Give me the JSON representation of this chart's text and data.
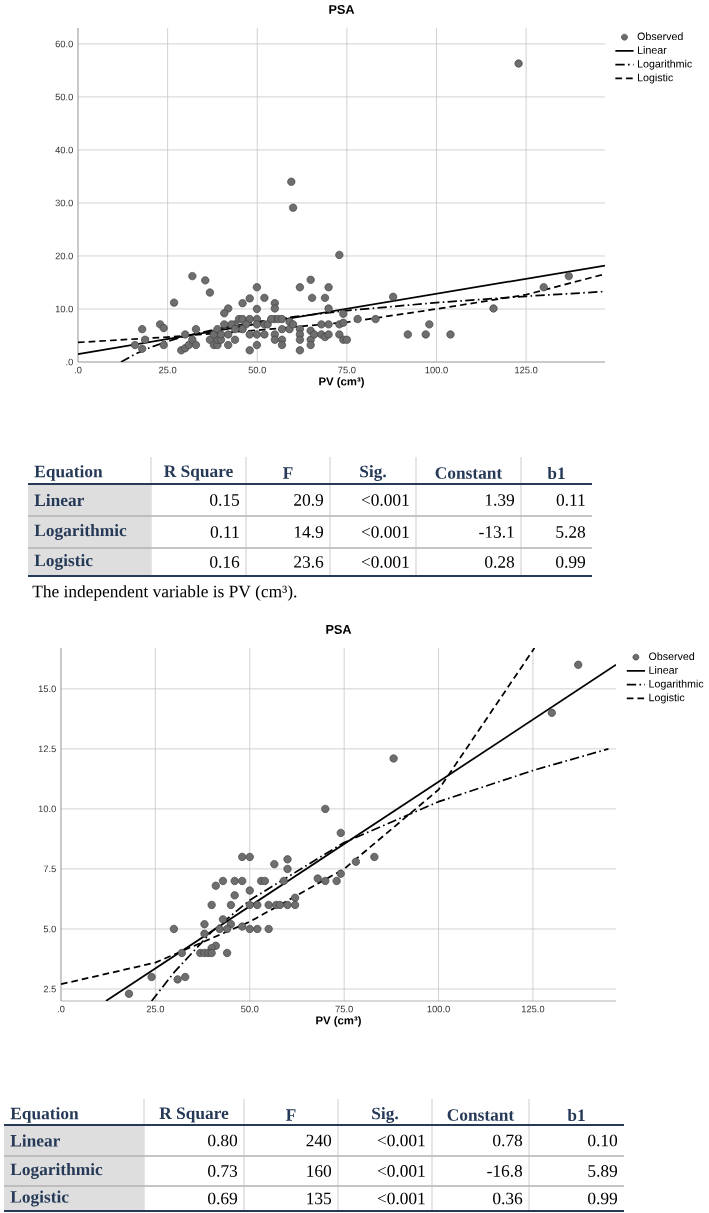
{
  "chart_data": [
    {
      "type": "scatter",
      "title": "PSA",
      "xlabel": "PV (cm³)",
      "marker": "circle",
      "grid": true,
      "legend": "top right",
      "xlim": [
        0,
        147
      ],
      "ylim": [
        0,
        63
      ],
      "xticks": [
        {
          "value": 0,
          "label": ".0"
        },
        {
          "value": 25,
          "label": "25.0"
        },
        {
          "value": 50,
          "label": "50.0"
        },
        {
          "value": 75,
          "label": "75.0"
        },
        {
          "value": 100,
          "label": "100.0"
        },
        {
          "value": 125,
          "label": "125.0"
        }
      ],
      "yticks": [
        {
          "value": 0,
          "label": ".0"
        },
        {
          "value": 10,
          "label": "10.0"
        },
        {
          "value": 20,
          "label": "20.0"
        },
        {
          "value": 30,
          "label": "30.0"
        },
        {
          "value": 40,
          "label": "40.0"
        },
        {
          "value": 50,
          "label": "50.0"
        },
        {
          "value": 60,
          "label": "60.0"
        }
      ],
      "series": [
        {
          "name": "Observed",
          "type": "scatter",
          "color": "#6e6e6e",
          "x": [
            122.9,
            59.5,
            60,
            72.9,
            31.9,
            35.5,
            36.8,
            26.8,
            64.9,
            61.9,
            69.9,
            49.9,
            47.9,
            52,
            45.9,
            54.9,
            54.9,
            49.9,
            41.9,
            40.8,
            65.3,
            68.9,
            69.9,
            74,
            87.9,
            115.9,
            129.9,
            136.9,
            83,
            78,
            92,
            97,
            98,
            103.9,
            17.9,
            17.9,
            15.9,
            18.7,
            22.9,
            23.9,
            23.9,
            29.9,
            28.8,
            29.9,
            30.9,
            31.9,
            32.9,
            32.9,
            36.8,
            37.9,
            38.9,
            38.9,
            39.9,
            41.9,
            41.9,
            43.8,
            44.9,
            45.9,
            47.9,
            49.9,
            43.8,
            42.8,
            40.8,
            47.9,
            49.9,
            47.9,
            49.9,
            52,
            52,
            54.9,
            54.9,
            56.9,
            56.9,
            56.9,
            59,
            61.9,
            61.9,
            61.9,
            61.9,
            64.9,
            64.9,
            64.9,
            65.9,
            67.9,
            67.9,
            68.9,
            69.9,
            69.9,
            72.9,
            72.9,
            74,
            75,
            74,
            54.9,
            52.9,
            53.9,
            55.9,
            46.9,
            45.9,
            43.8,
            37.9,
            38.9,
            39.9,
            59,
            56.9,
            60,
            49.9
          ],
          "values": [
            56.3,
            34.0,
            29.1,
            20.2,
            16.2,
            15.4,
            13.1,
            11.2,
            15.5,
            14.1,
            14.1,
            14.1,
            12.0,
            12.1,
            11.1,
            11.1,
            10.1,
            10.0,
            10.1,
            9.2,
            12.1,
            12.1,
            10.1,
            9.1,
            12.3,
            10.1,
            14.1,
            16.2,
            8.1,
            8.1,
            5.2,
            5.2,
            7.1,
            5.2,
            6.2,
            2.5,
            3.2,
            4.2,
            7.1,
            6.4,
            3.2,
            5.2,
            2.2,
            2.6,
            3.2,
            4.2,
            3.2,
            6.2,
            4.2,
            3.2,
            3.2,
            4.2,
            4.2,
            3.2,
            5.2,
            4.2,
            8.1,
            8.1,
            8.1,
            8.1,
            7.1,
            7.1,
            7.1,
            5.2,
            5.2,
            2.2,
            3.2,
            5.2,
            7.1,
            5.2,
            4.2,
            4.2,
            3.2,
            6.2,
            6.2,
            6.2,
            5.2,
            4.2,
            2.2,
            4.2,
            3.2,
            5.9,
            5.2,
            7.1,
            5.2,
            4.7,
            7.1,
            5.2,
            7.1,
            5.2,
            4.2,
            4.2,
            7.4,
            8.1,
            7.1,
            8.1,
            8.1,
            7.1,
            6.2,
            6.2,
            5.2,
            6.2,
            5.2,
            7.6,
            8.1,
            7.1,
            7.1
          ]
        },
        {
          "name": "Linear",
          "type": "line",
          "color": "#000000",
          "marker": "none",
          "line_style": "solid",
          "x": [
            0,
            147
          ],
          "values": [
            1.5,
            18.2
          ]
        },
        {
          "name": "Logarithmic",
          "type": "line",
          "color": "#000000",
          "marker": "none",
          "line_style": "dashdot",
          "x": [
            12,
            16,
            20,
            25,
            30,
            40,
            50,
            60,
            75,
            100,
            125,
            147
          ],
          "values": [
            0.0,
            1.5,
            2.7,
            3.9,
            4.9,
            6.4,
            7.6,
            8.5,
            9.7,
            11.2,
            12.4,
            13.3
          ]
        },
        {
          "name": "Logistic",
          "type": "line",
          "color": "#000000",
          "marker": "none",
          "line_style": "dashed",
          "x": [
            0,
            25,
            50,
            75,
            100,
            125,
            147
          ],
          "values": [
            3.7,
            4.7,
            6.0,
            7.5,
            10.0,
            12.7,
            16.6
          ]
        }
      ]
    },
    {
      "type": "other",
      "annotations": [
        "Equation",
        "R Square",
        "F",
        "Sig.",
        "Constant",
        "b1",
        "Linear",
        "0.15",
        "20.9",
        "<0.001",
        "1.39",
        "0.11",
        "Logarithmic",
        "0.11",
        "14.9",
        "<0.001",
        "-13.1",
        "5.28",
        "Logistic",
        "0.16",
        "23.6",
        "<0.001",
        "0.28",
        "0.99",
        "The independent variable is PV (cm³)."
      ]
    },
    {
      "type": "scatter",
      "title": "PSA",
      "xlabel": "PV (cm³)",
      "marker": "circle",
      "grid": true,
      "legend": "top right",
      "xlim": [
        0,
        147
      ],
      "ylim": [
        2,
        16.7
      ],
      "xticks": [
        {
          "value": 0,
          "label": ".0"
        },
        {
          "value": 25,
          "label": "25.0"
        },
        {
          "value": 50,
          "label": "50.0"
        },
        {
          "value": 75,
          "label": "75.0"
        },
        {
          "value": 100,
          "label": "100.0"
        },
        {
          "value": 125,
          "label": "125.0"
        }
      ],
      "yticks": [
        2.5,
        {
          "value": 5,
          "label": "5.0"
        },
        7.5,
        {
          "value": 10,
          "label": "10.0"
        },
        12.5,
        {
          "value": 15,
          "label": "15.0"
        }
      ],
      "series": [
        {
          "name": "Observed",
          "type": "scatter",
          "color": "#6e6e6e",
          "x": [
            137,
            130,
            88.1,
            70,
            74.1,
            48,
            50,
            56.5,
            60,
            60,
            78.1,
            83,
            74.1,
            68,
            70,
            73,
            41,
            42.9,
            46,
            48,
            53,
            54,
            59,
            46,
            50,
            62,
            39.9,
            45,
            50,
            52,
            55,
            57,
            58,
            60,
            62,
            38,
            42.9,
            45,
            38,
            42,
            44,
            48,
            50,
            52,
            55,
            29.9,
            41,
            39.9,
            36.9,
            38,
            39,
            39.9,
            44,
            32,
            30.9,
            32.9,
            24,
            18
          ],
          "values": [
            16.0,
            14.0,
            12.1,
            10.0,
            9.0,
            8.0,
            8.0,
            7.7,
            7.9,
            7.5,
            7.8,
            8.0,
            7.3,
            7.1,
            7.0,
            7.0,
            6.8,
            7.0,
            7.0,
            7.0,
            7.0,
            7.0,
            7.0,
            6.4,
            6.6,
            6.3,
            6.0,
            6.0,
            6.0,
            6.0,
            6.0,
            6.0,
            6.0,
            6.0,
            6.0,
            5.2,
            5.4,
            5.2,
            4.8,
            5.0,
            5.0,
            5.1,
            5.0,
            5.0,
            5.0,
            5.0,
            4.3,
            4.2,
            4.0,
            4.0,
            4.0,
            4.0,
            4.0,
            4.0,
            2.9,
            3.0,
            3.0,
            2.3
          ]
        },
        {
          "name": "Linear",
          "type": "line",
          "color": "#000000",
          "marker": "none",
          "line_style": "solid",
          "x": [
            11.9,
            147
          ],
          "values": [
            2.0,
            16.0
          ]
        },
        {
          "name": "Logarithmic",
          "type": "line",
          "color": "#000000",
          "marker": "none",
          "line_style": "dashdot",
          "x": [
            24,
            30,
            40,
            50,
            75,
            100,
            125,
            145
          ],
          "values": [
            2.0,
            3.2,
            4.9,
            6.2,
            8.6,
            10.3,
            11.6,
            12.5
          ]
        },
        {
          "name": "Logistic",
          "type": "line",
          "color": "#000000",
          "marker": "none",
          "line_style": "dashed",
          "x": [
            0,
            25,
            50,
            75,
            100,
            125.4
          ],
          "values": [
            2.7,
            3.6,
            5.3,
            7.5,
            10.8,
            16.7
          ]
        }
      ]
    },
    {
      "type": "other",
      "annotations": [
        "Equation",
        "R Square",
        "F",
        "Sig.",
        "Constant",
        "b1",
        "Linear",
        "0.80",
        "240",
        "<0.001",
        "0.78",
        "0.10",
        "Logarithmic",
        "0.73",
        "160",
        "<0.001",
        "-16.8",
        "5.89",
        "Logistic",
        "0.69",
        "135",
        "<0.001",
        "0.36",
        "0.99"
      ]
    }
  ]
}
